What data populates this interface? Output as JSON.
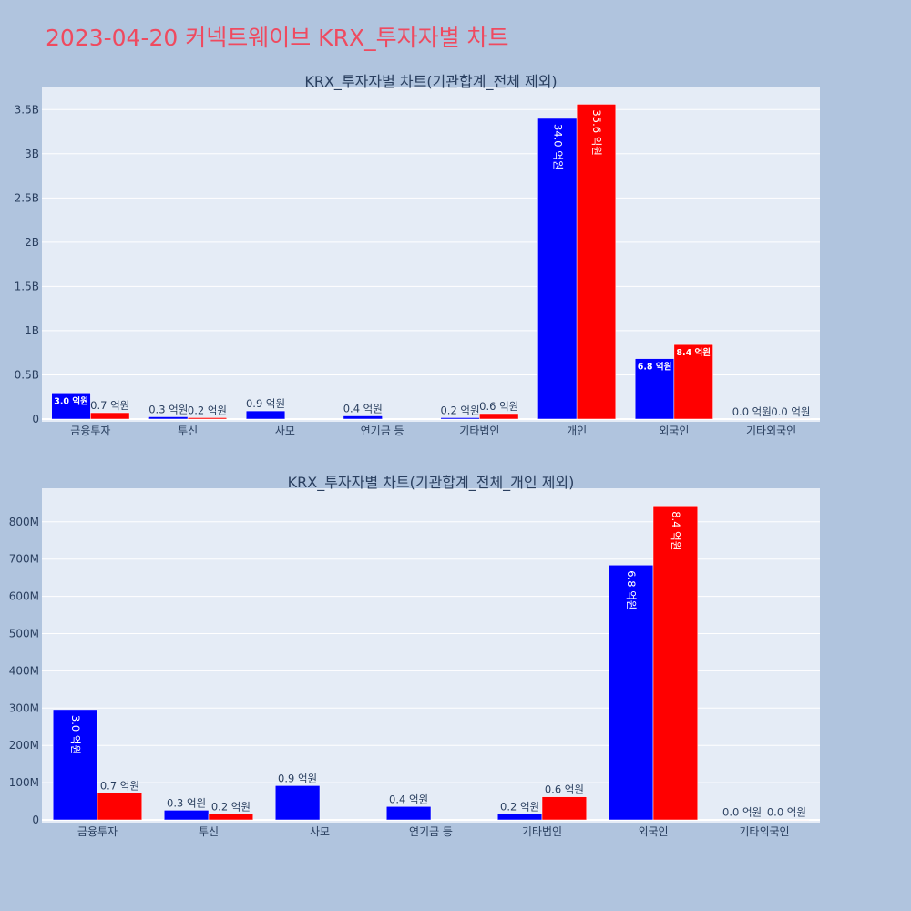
{
  "page_title": "2023-04-20 커넥트웨이브 KRX_투자자별 차트",
  "colors": {
    "buy": "#0000ff",
    "sell": "#ff0000",
    "plot_bg": "#e5ecf6",
    "page_bg": "#b0c4de",
    "title": "#ef4a5f"
  },
  "chart_data": [
    {
      "type": "bar",
      "title": "KRX_투자자별 차트(기관합계_전체 제외)",
      "categories": [
        "금융투자",
        "투신",
        "사모",
        "연기금 등",
        "기타법인",
        "개인",
        "외국인",
        "기타외국인"
      ],
      "series": [
        {
          "color": "#0000ff",
          "values": [
            296000000,
            26000000,
            92000000,
            36000000,
            16000000,
            3400000000,
            684000000,
            1000000
          ],
          "labels": [
            "3.0 억원",
            "0.3 억원",
            "0.9 억원",
            "0.4 억원",
            "0.2 억원",
            "34.0 억원",
            "6.8 억원",
            "0.0 억원"
          ]
        },
        {
          "color": "#ff0000",
          "values": [
            72000000,
            16000000,
            0,
            0,
            62000000,
            3560000000,
            843000000,
            1000000
          ],
          "labels": [
            "0.7 억원",
            "0.2 억원",
            "",
            "",
            "0.6 억원",
            "35.6 억원",
            "8.4 억원",
            "0.0 억원"
          ]
        }
      ],
      "ylim": [
        0,
        3750000000
      ],
      "yticks": [
        0,
        500000000,
        1000000000,
        1500000000,
        2000000000,
        2500000000,
        3000000000,
        3500000000
      ],
      "ytick_labels": [
        "0",
        "0.5B",
        "1B",
        "1.5B",
        "2B",
        "2.5B",
        "3B",
        "3.5B"
      ]
    },
    {
      "type": "bar",
      "title": "KRX_투자자별 차트(기관합계_전체_개인 제외)",
      "categories": [
        "금융투자",
        "투신",
        "사모",
        "연기금 등",
        "기타법인",
        "외국인",
        "기타외국인"
      ],
      "series": [
        {
          "color": "#0000ff",
          "values": [
            296000000,
            26000000,
            92000000,
            36000000,
            16000000,
            684000000,
            1000000
          ],
          "labels": [
            "3.0 억원",
            "0.3 억원",
            "0.9 억원",
            "0.4 억원",
            "0.2 억원",
            "6.8 억원",
            "0.0 억원"
          ]
        },
        {
          "color": "#ff0000",
          "values": [
            72000000,
            16000000,
            0,
            0,
            62000000,
            843000000,
            1000000
          ],
          "labels": [
            "0.7 억원",
            "0.2 억원",
            "",
            "",
            "0.6 억원",
            "8.4 억원",
            "0.0 억원"
          ]
        }
      ],
      "ylim": [
        0,
        890000000
      ],
      "yticks": [
        0,
        100000000,
        200000000,
        300000000,
        400000000,
        500000000,
        600000000,
        700000000,
        800000000
      ],
      "ytick_labels": [
        "0",
        "100M",
        "200M",
        "300M",
        "400M",
        "500M",
        "600M",
        "700M",
        "800M"
      ]
    }
  ]
}
